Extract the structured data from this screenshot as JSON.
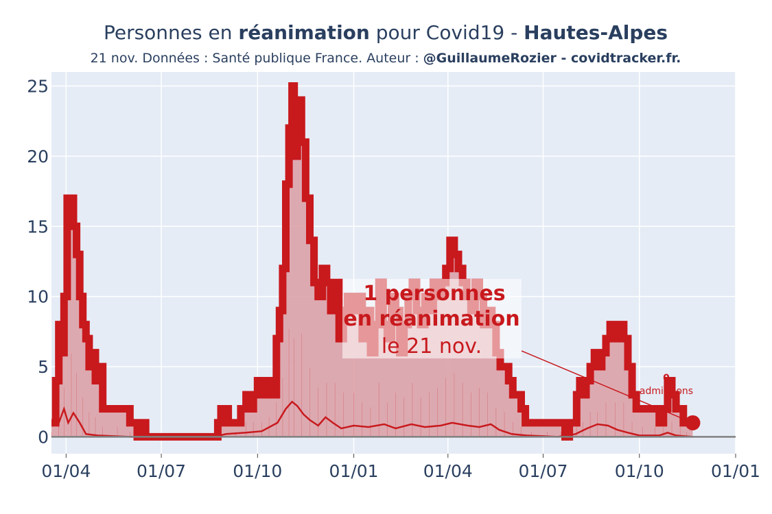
{
  "title": {
    "part1": "Personnes en ",
    "part2": "réanimation",
    "part3": " pour Covid19 - ",
    "part4": "Hautes-Alpes"
  },
  "subtitle": {
    "part1": "21 nov. Données : Santé publique France. Auteur : ",
    "part2": "@GuillaumeRozier - covidtracker.fr."
  },
  "annotation": {
    "line1": "1 personnes",
    "line2": "en réanimation",
    "line3": "le 21 nov."
  },
  "admissions_annotation": {
    "value": "0",
    "label": "admissions"
  },
  "colors": {
    "line": "#c8191d",
    "fill": "#dba2a8",
    "plot_bg": "#e5ecf6",
    "grid": "#ffffff",
    "zero_line": "#808080"
  },
  "chart_data": {
    "type": "area",
    "title": "Personnes en réanimation pour Covid19 - Hautes-Alpes",
    "xlabel": "",
    "ylabel": "",
    "ylim": [
      -1.2,
      26
    ],
    "xlim": [
      "2020-03-18",
      "2022-01-01"
    ],
    "grid": true,
    "x_ticks": [
      {
        "date": "2020-04-01",
        "label": "01/04"
      },
      {
        "date": "2020-07-01",
        "label": "01/07"
      },
      {
        "date": "2020-10-01",
        "label": "01/10"
      },
      {
        "date": "2021-01-01",
        "label": "01/01"
      },
      {
        "date": "2021-04-01",
        "label": "01/04"
      },
      {
        "date": "2021-07-01",
        "label": "01/07"
      },
      {
        "date": "2021-10-01",
        "label": "01/10"
      },
      {
        "date": "2022-01-01",
        "label": "01/01"
      }
    ],
    "y_ticks": [
      0,
      5,
      10,
      15,
      20,
      25
    ],
    "series": [
      {
        "values": [
          [
            "2020-03-18",
            1
          ],
          [
            "2020-03-22",
            4
          ],
          [
            "2020-03-25",
            8
          ],
          [
            "2020-03-27",
            6
          ],
          [
            "2020-03-30",
            10
          ],
          [
            "2020-04-02",
            17
          ],
          [
            "2020-04-06",
            17
          ],
          [
            "2020-04-08",
            15
          ],
          [
            "2020-04-11",
            13
          ],
          [
            "2020-04-14",
            10
          ],
          [
            "2020-04-17",
            8
          ],
          [
            "2020-04-20",
            7
          ],
          [
            "2020-04-23",
            5
          ],
          [
            "2020-04-26",
            6
          ],
          [
            "2020-04-29",
            4
          ],
          [
            "2020-05-03",
            5
          ],
          [
            "2020-05-06",
            2
          ],
          [
            "2020-05-12",
            2
          ],
          [
            "2020-05-20",
            2
          ],
          [
            "2020-05-28",
            2
          ],
          [
            "2020-06-01",
            1
          ],
          [
            "2020-06-08",
            0
          ],
          [
            "2020-06-12",
            1
          ],
          [
            "2020-06-16",
            0
          ],
          [
            "2020-07-01",
            0
          ],
          [
            "2020-08-01",
            0
          ],
          [
            "2020-08-20",
            0
          ],
          [
            "2020-08-24",
            1
          ],
          [
            "2020-08-27",
            2
          ],
          [
            "2020-09-03",
            1
          ],
          [
            "2020-09-10",
            1
          ],
          [
            "2020-09-15",
            2
          ],
          [
            "2020-09-20",
            3
          ],
          [
            "2020-09-23",
            2
          ],
          [
            "2020-09-27",
            3
          ],
          [
            "2020-10-01",
            4
          ],
          [
            "2020-10-05",
            3
          ],
          [
            "2020-10-09",
            4
          ],
          [
            "2020-10-12",
            4
          ],
          [
            "2020-10-16",
            3
          ],
          [
            "2020-10-19",
            7
          ],
          [
            "2020-10-22",
            9
          ],
          [
            "2020-10-25",
            12
          ],
          [
            "2020-10-28",
            18
          ],
          [
            "2020-10-31",
            22
          ],
          [
            "2020-11-03",
            25
          ],
          [
            "2020-11-05",
            20
          ],
          [
            "2020-11-08",
            24
          ],
          [
            "2020-11-12",
            21
          ],
          [
            "2020-11-16",
            17
          ],
          [
            "2020-11-20",
            14
          ],
          [
            "2020-11-24",
            11
          ],
          [
            "2020-11-28",
            10
          ],
          [
            "2020-12-02",
            12
          ],
          [
            "2020-12-06",
            11
          ],
          [
            "2020-12-10",
            9
          ],
          [
            "2020-12-14",
            11
          ],
          [
            "2020-12-18",
            7
          ],
          [
            "2020-12-22",
            9
          ],
          [
            "2020-12-26",
            10
          ],
          [
            "2021-01-01",
            9
          ],
          [
            "2021-01-05",
            10
          ],
          [
            "2021-01-09",
            7
          ],
          [
            "2021-01-13",
            9
          ],
          [
            "2021-01-17",
            6
          ],
          [
            "2021-01-21",
            8
          ],
          [
            "2021-01-25",
            11
          ],
          [
            "2021-01-29",
            8
          ],
          [
            "2021-02-02",
            7
          ],
          [
            "2021-02-06",
            10
          ],
          [
            "2021-02-10",
            9
          ],
          [
            "2021-02-14",
            6
          ],
          [
            "2021-02-18",
            8
          ],
          [
            "2021-02-22",
            10
          ],
          [
            "2021-02-26",
            11
          ],
          [
            "2021-03-02",
            9
          ],
          [
            "2021-03-06",
            8
          ],
          [
            "2021-03-10",
            10
          ],
          [
            "2021-03-14",
            9
          ],
          [
            "2021-03-18",
            11
          ],
          [
            "2021-03-22",
            10
          ],
          [
            "2021-03-26",
            11
          ],
          [
            "2021-03-30",
            12
          ],
          [
            "2021-04-03",
            14
          ],
          [
            "2021-04-07",
            13
          ],
          [
            "2021-04-11",
            12
          ],
          [
            "2021-04-15",
            11
          ],
          [
            "2021-04-19",
            10
          ],
          [
            "2021-04-23",
            9
          ],
          [
            "2021-04-27",
            11
          ],
          [
            "2021-05-01",
            10
          ],
          [
            "2021-05-05",
            8
          ],
          [
            "2021-05-09",
            9
          ],
          [
            "2021-05-13",
            8
          ],
          [
            "2021-05-17",
            6
          ],
          [
            "2021-05-21",
            5
          ],
          [
            "2021-05-25",
            5
          ],
          [
            "2021-05-29",
            4
          ],
          [
            "2021-06-02",
            3
          ],
          [
            "2021-06-06",
            3
          ],
          [
            "2021-06-10",
            2
          ],
          [
            "2021-06-14",
            1
          ],
          [
            "2021-06-20",
            1
          ],
          [
            "2021-06-28",
            1
          ],
          [
            "2021-07-05",
            1
          ],
          [
            "2021-07-12",
            1
          ],
          [
            "2021-07-18",
            1
          ],
          [
            "2021-07-22",
            0
          ],
          [
            "2021-07-26",
            1
          ],
          [
            "2021-07-30",
            1
          ],
          [
            "2021-08-02",
            3
          ],
          [
            "2021-08-05",
            4
          ],
          [
            "2021-08-08",
            3
          ],
          [
            "2021-08-11",
            4
          ],
          [
            "2021-08-15",
            5
          ],
          [
            "2021-08-19",
            6
          ],
          [
            "2021-08-22",
            5
          ],
          [
            "2021-08-26",
            6
          ],
          [
            "2021-08-30",
            7
          ],
          [
            "2021-09-03",
            8
          ],
          [
            "2021-09-08",
            7
          ],
          [
            "2021-09-12",
            8
          ],
          [
            "2021-09-16",
            7
          ],
          [
            "2021-09-20",
            5
          ],
          [
            "2021-09-24",
            3
          ],
          [
            "2021-09-28",
            2
          ],
          [
            "2021-10-04",
            2
          ],
          [
            "2021-10-10",
            2
          ],
          [
            "2021-10-16",
            2
          ],
          [
            "2021-10-20",
            1
          ],
          [
            "2021-10-24",
            2
          ],
          [
            "2021-10-28",
            4
          ],
          [
            "2021-11-01",
            3
          ],
          [
            "2021-11-05",
            2
          ],
          [
            "2021-11-09",
            2
          ],
          [
            "2021-11-12",
            1
          ],
          [
            "2021-11-15",
            1
          ],
          [
            "2021-11-21",
            1
          ]
        ]
      },
      {
        "values": [
          [
            "2020-03-18",
            1
          ],
          [
            "2020-03-25",
            1
          ],
          [
            "2020-03-30",
            2
          ],
          [
            "2020-04-03",
            1
          ],
          [
            "2020-04-08",
            1.7
          ],
          [
            "2020-04-14",
            1
          ],
          [
            "2020-04-20",
            0.2
          ],
          [
            "2020-05-01",
            0.1
          ],
          [
            "2020-06-01",
            0
          ],
          [
            "2020-08-20",
            0
          ],
          [
            "2020-09-01",
            0.2
          ],
          [
            "2020-09-20",
            0.3
          ],
          [
            "2020-10-05",
            0.4
          ],
          [
            "2020-10-20",
            1
          ],
          [
            "2020-10-28",
            2
          ],
          [
            "2020-11-03",
            2.5
          ],
          [
            "2020-11-08",
            2.2
          ],
          [
            "2020-11-14",
            1.6
          ],
          [
            "2020-11-20",
            1.2
          ],
          [
            "2020-11-28",
            0.8
          ],
          [
            "2020-12-05",
            1.4
          ],
          [
            "2020-12-12",
            1
          ],
          [
            "2020-12-20",
            0.6
          ],
          [
            "2021-01-01",
            0.8
          ],
          [
            "2021-01-15",
            0.7
          ],
          [
            "2021-01-30",
            0.9
          ],
          [
            "2021-02-10",
            0.6
          ],
          [
            "2021-02-25",
            0.9
          ],
          [
            "2021-03-10",
            0.7
          ],
          [
            "2021-03-25",
            0.8
          ],
          [
            "2021-04-05",
            1
          ],
          [
            "2021-04-20",
            0.8
          ],
          [
            "2021-05-01",
            0.7
          ],
          [
            "2021-05-12",
            0.9
          ],
          [
            "2021-05-20",
            0.5
          ],
          [
            "2021-06-01",
            0.2
          ],
          [
            "2021-06-15",
            0.1
          ],
          [
            "2021-07-15",
            0
          ],
          [
            "2021-08-01",
            0.2
          ],
          [
            "2021-08-12",
            0.6
          ],
          [
            "2021-08-22",
            0.9
          ],
          [
            "2021-09-01",
            0.8
          ],
          [
            "2021-09-10",
            0.5
          ],
          [
            "2021-09-20",
            0.3
          ],
          [
            "2021-10-01",
            0.1
          ],
          [
            "2021-10-20",
            0.1
          ],
          [
            "2021-10-28",
            0.3
          ],
          [
            "2021-11-05",
            0.1
          ],
          [
            "2021-11-21",
            0
          ]
        ]
      }
    ],
    "last_point": {
      "date": "2021-11-21",
      "value": 1
    }
  }
}
